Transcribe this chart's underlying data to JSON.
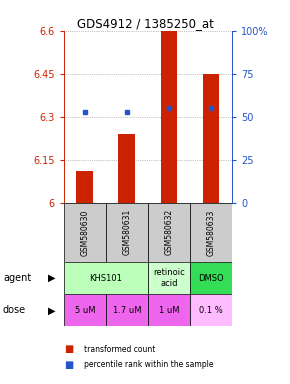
{
  "title": "GDS4912 / 1385250_at",
  "samples": [
    "GSM580630",
    "GSM580631",
    "GSM580632",
    "GSM580633"
  ],
  "bar_values": [
    6.11,
    6.24,
    6.6,
    6.45
  ],
  "bar_bottom": 6.0,
  "percentile_values": [
    53,
    53,
    55,
    55
  ],
  "ylim_left": [
    6.0,
    6.6
  ],
  "ylim_right": [
    0,
    100
  ],
  "yticks_left": [
    6.0,
    6.15,
    6.3,
    6.45,
    6.6
  ],
  "yticks_right": [
    0,
    25,
    50,
    75,
    100
  ],
  "ytick_labels_left": [
    "6",
    "6.15",
    "6.3",
    "6.45",
    "6.6"
  ],
  "ytick_labels_right": [
    "0",
    "25",
    "50",
    "75",
    "100%"
  ],
  "bar_color": "#cc2200",
  "percentile_color": "#2255cc",
  "agent_configs": [
    [
      0,
      2,
      "KHS101",
      "#bbffbb"
    ],
    [
      2,
      3,
      "retinoic\nacid",
      "#ccffcc"
    ],
    [
      3,
      4,
      "DMSO",
      "#33dd55"
    ]
  ],
  "dose_labels": [
    "5 uM",
    "1.7 uM",
    "1 uM",
    "0.1 %"
  ],
  "dose_colors": [
    "#ee66ee",
    "#ee66ee",
    "#ee66ee",
    "#ffbbff"
  ],
  "sample_bg": "#cccccc",
  "dotted_color": "#888888"
}
